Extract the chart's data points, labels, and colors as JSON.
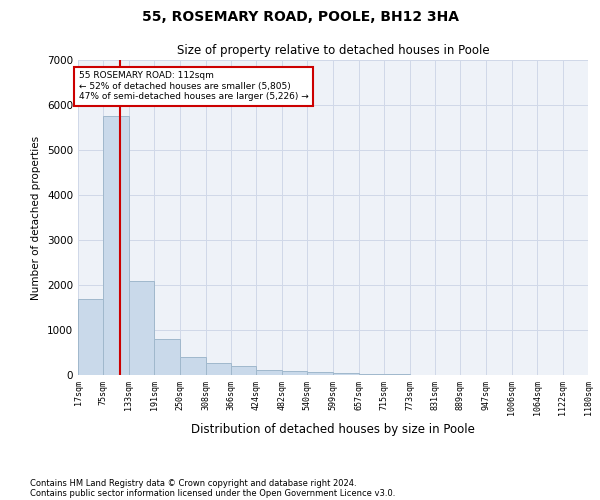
{
  "title": "55, ROSEMARY ROAD, POOLE, BH12 3HA",
  "subtitle": "Size of property relative to detached houses in Poole",
  "xlabel": "Distribution of detached houses by size in Poole",
  "ylabel": "Number of detached properties",
  "footnote1": "Contains HM Land Registry data © Crown copyright and database right 2024.",
  "footnote2": "Contains public sector information licensed under the Open Government Licence v3.0.",
  "property_size": 112,
  "property_label": "55 ROSEMARY ROAD: 112sqm",
  "annotation_line1": "← 52% of detached houses are smaller (5,805)",
  "annotation_line2": "47% of semi-detached houses are larger (5,226) →",
  "bar_color": "#c9d9ea",
  "bar_edge_color": "#a0b8cc",
  "line_color": "#cc0000",
  "annotation_box_color": "#cc0000",
  "grid_color": "#d0d8e8",
  "background_color": "#eef2f8",
  "ylim": [
    0,
    7000
  ],
  "bin_edges": [
    17,
    75,
    133,
    191,
    250,
    308,
    366,
    424,
    482,
    540,
    599,
    657,
    715,
    773,
    831,
    889,
    947,
    1006,
    1064,
    1122,
    1180
  ],
  "bar_heights": [
    1700,
    5750,
    2100,
    800,
    390,
    270,
    190,
    120,
    95,
    75,
    50,
    28,
    18,
    10,
    7,
    4,
    3,
    2,
    1,
    1
  ]
}
